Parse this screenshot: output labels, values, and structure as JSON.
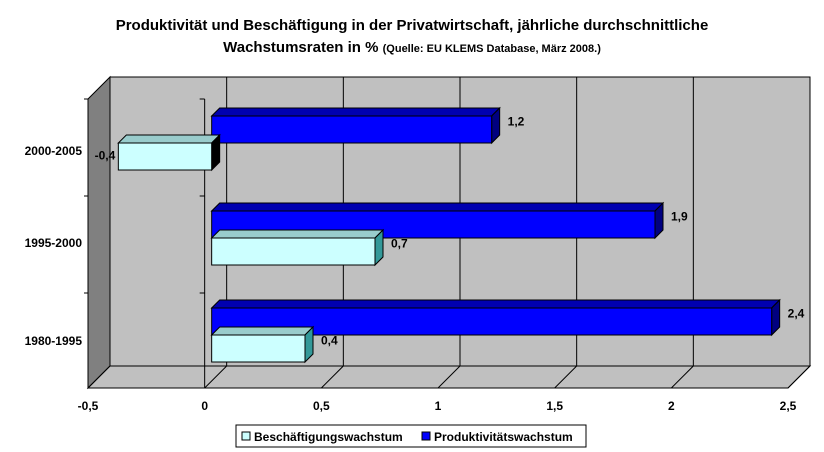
{
  "chart_data": {
    "type": "bar",
    "orientation": "horizontal",
    "title_line1": "Produktivität und Beschäftigung in der Privatwirtschaft, jährliche durchschnittliche",
    "title_line2": "Wachstumsraten in %",
    "subtitle": "(Quelle: EU KLEMS Database, März 2008.)",
    "categories": [
      "2000-2005",
      "1995-2000",
      "1980-1995"
    ],
    "series": [
      {
        "name": "Beschäftigungswachstum",
        "color": "#ccffff",
        "values": [
          -0.4,
          0.7,
          0.4
        ],
        "labels": [
          "-0,4",
          "0,7",
          "0,4"
        ]
      },
      {
        "name": "Produktivitätswachstum",
        "color": "#0000ff",
        "values": [
          1.2,
          1.9,
          2.4
        ],
        "labels": [
          "1,2",
          "1,9",
          "2,4"
        ]
      }
    ],
    "xlim": [
      -0.5,
      2.5
    ],
    "xticks": [
      -0.5,
      0,
      0.5,
      1,
      1.5,
      2,
      2.5
    ],
    "xtick_labels": [
      "-0,5",
      "0",
      "0,5",
      "1",
      "1,5",
      "2",
      "2,5"
    ],
    "legend": "bottom",
    "grid": true
  }
}
